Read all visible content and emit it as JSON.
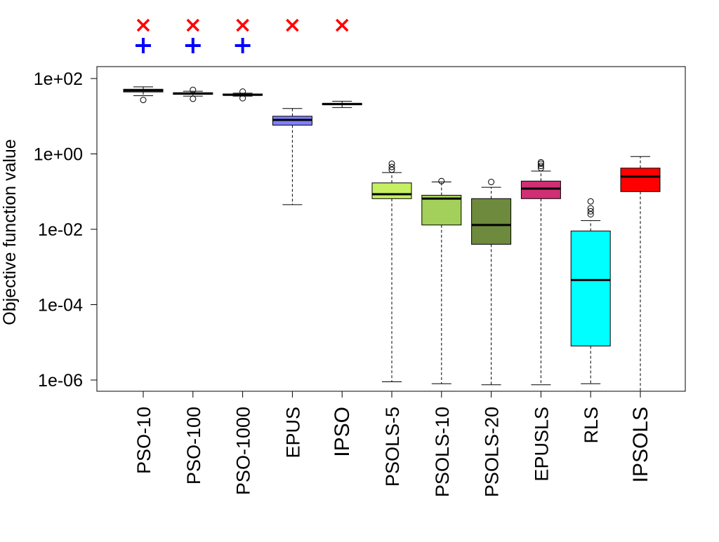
{
  "chart_data": {
    "type": "box",
    "ylabel": "Objective function value",
    "yscale": "log10",
    "ylim": [
      4e-07,
      200
    ],
    "yticks": [
      {
        "value": 1e-06,
        "label": "1e-06"
      },
      {
        "value": 0.0001,
        "label": "1e-04"
      },
      {
        "value": 0.01,
        "label": "1e-02"
      },
      {
        "value": 1,
        "label": "1e+00"
      },
      {
        "value": 100,
        "label": "1e+02"
      }
    ],
    "categories": [
      "PSO-10",
      "PSO-100",
      "PSO-1000",
      "EPUS",
      "IPSO",
      "PSOLS-5",
      "PSOLS-10",
      "PSOLS-20",
      "EPUSLS",
      "RLS",
      "IPSOLS"
    ],
    "bold_categories": [
      "IPSO",
      "IPSOLS"
    ],
    "boxes": [
      {
        "name": "PSO-10",
        "whisker_low": 35,
        "q1": 44,
        "median": 48,
        "q3": 52,
        "whisker_high": 60,
        "outliers": [
          27
        ],
        "color": "#ffffff"
      },
      {
        "name": "PSO-100",
        "whisker_low": 34,
        "q1": 38,
        "median": 40,
        "q3": 42,
        "whisker_high": 46,
        "outliers": [
          29,
          50
        ],
        "color": "#ffffff"
      },
      {
        "name": "PSO-1000",
        "whisker_low": 34,
        "q1": 36,
        "median": 37,
        "q3": 39,
        "whisker_high": 41,
        "outliers": [
          30,
          45
        ],
        "color": "#ffffff"
      },
      {
        "name": "EPUS",
        "whisker_low": 0.045,
        "q1": 5.8,
        "median": 8,
        "q3": 10,
        "whisker_high": 16,
        "outliers": [],
        "color": "#8080ff"
      },
      {
        "name": "IPSO",
        "whisker_low": 17,
        "q1": 20,
        "median": 21,
        "q3": 22,
        "whisker_high": 25,
        "outliers": [],
        "color": "#ffffff"
      },
      {
        "name": "PSOLS-5",
        "whisker_low": 9e-07,
        "q1": 0.065,
        "median": 0.085,
        "q3": 0.17,
        "whisker_high": 0.32,
        "outliers": [
          0.38,
          0.45,
          0.55
        ],
        "color": "#c6f062"
      },
      {
        "name": "PSOLS-10",
        "whisker_low": 8e-07,
        "q1": 0.013,
        "median": 0.065,
        "q3": 0.08,
        "whisker_high": 0.18,
        "outliers": [
          0.19
        ],
        "color": "#a2d05a"
      },
      {
        "name": "PSOLS-20",
        "whisker_low": 7.5e-07,
        "q1": 0.004,
        "median": 0.013,
        "q3": 0.065,
        "whisker_high": 0.13,
        "outliers": [
          0.18
        ],
        "color": "#6e8a3c"
      },
      {
        "name": "EPUSLS",
        "whisker_low": 7.5e-07,
        "q1": 0.065,
        "median": 0.12,
        "q3": 0.19,
        "whisker_high": 0.35,
        "outliers": [
          0.42,
          0.48,
          0.55,
          0.6
        ],
        "color": "#d02f74"
      },
      {
        "name": "RLS",
        "whisker_low": 8e-07,
        "q1": 8e-06,
        "median": 0.00045,
        "q3": 0.009,
        "whisker_high": 0.017,
        "outliers": [
          0.025,
          0.03,
          0.036,
          0.055
        ],
        "color": "#00ffff"
      },
      {
        "name": "IPSOLS",
        "whisker_low": 2e-07,
        "q1": 0.1,
        "median": 0.25,
        "q3": 0.42,
        "whisker_high": 0.85,
        "outliers": [],
        "color": "#ff0000"
      }
    ],
    "markers": {
      "cross": {
        "symbol": "×",
        "color": "#ff0000",
        "categories": [
          "PSO-10",
          "PSO-100",
          "PSO-1000",
          "EPUS",
          "IPSO"
        ]
      },
      "plus": {
        "symbol": "+",
        "color": "#0000ff",
        "categories": [
          "PSO-10",
          "PSO-100",
          "PSO-1000"
        ]
      }
    },
    "grid": false,
    "legend": "none"
  }
}
